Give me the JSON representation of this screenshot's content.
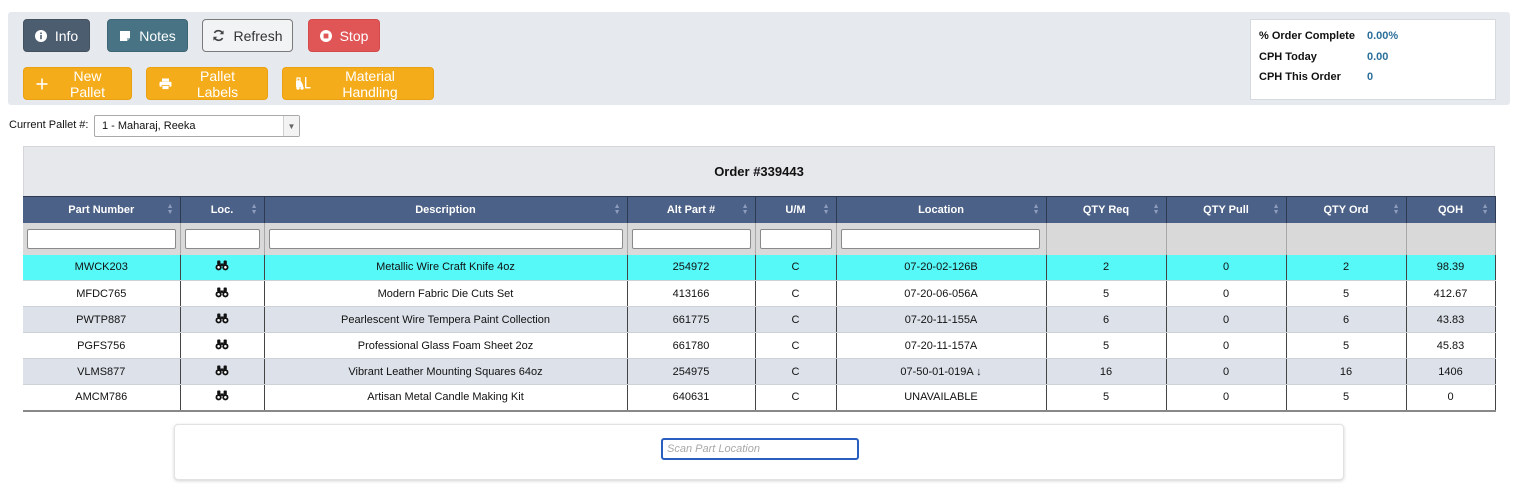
{
  "toolbar": {
    "info_label": "Info",
    "notes_label": "Notes",
    "refresh_label": "Refresh",
    "stop_label": "Stop",
    "new_pallet_label": "New Pallet",
    "pallet_labels_label": "Pallet Labels",
    "material_handling_label": "Material Handling"
  },
  "stats": {
    "order_complete_label": "% Order Complete",
    "order_complete_value": "0.00%",
    "cph_today_label": "CPH Today",
    "cph_today_value": "0.00",
    "cph_order_label": "CPH This Order",
    "cph_order_value": "0"
  },
  "pallet": {
    "label": "Current Pallet #:",
    "selected": "1 - Maharaj, Reeka"
  },
  "order": {
    "title": "Order #339443"
  },
  "table": {
    "headers": [
      "Part Number",
      "Loc.",
      "Description",
      "Alt Part #",
      "U/M",
      "Location",
      "QTY Req",
      "QTY Pull",
      "QTY Ord",
      "QOH"
    ],
    "rows": [
      {
        "part": "MWCK203",
        "desc": "Metallic Wire Craft Knife 4oz",
        "alt": "254972",
        "um": "C",
        "location": "07-20-02-126B",
        "req": "2",
        "pull": "0",
        "ord": "2",
        "qoh": "98.39"
      },
      {
        "part": "MFDC765",
        "desc": "Modern Fabric Die Cuts Set",
        "alt": "413166",
        "um": "C",
        "location": "07-20-06-056A",
        "req": "5",
        "pull": "0",
        "ord": "5",
        "qoh": "412.67"
      },
      {
        "part": "PWTP887",
        "desc": "Pearlescent Wire Tempera Paint Collection",
        "alt": "661775",
        "um": "C",
        "location": "07-20-11-155A",
        "req": "6",
        "pull": "0",
        "ord": "6",
        "qoh": "43.83"
      },
      {
        "part": "PGFS756",
        "desc": "Professional Glass Foam Sheet 2oz",
        "alt": "661780",
        "um": "C",
        "location": "07-20-11-157A",
        "req": "5",
        "pull": "0",
        "ord": "5",
        "qoh": "45.83"
      },
      {
        "part": "VLMS877",
        "desc": "Vibrant Leather Mounting Squares 64oz",
        "alt": "254975",
        "um": "C",
        "location": "07-50-01-019A ↓",
        "req": "16",
        "pull": "0",
        "ord": "16",
        "qoh": "1406"
      },
      {
        "part": "AMCM786",
        "desc": "Artisan Metal Candle Making Kit",
        "alt": "640631",
        "um": "C",
        "location": "UNAVAILABLE",
        "req": "5",
        "pull": "0",
        "ord": "5",
        "qoh": "0"
      }
    ]
  },
  "scan": {
    "placeholder": "Scan Part Location"
  }
}
